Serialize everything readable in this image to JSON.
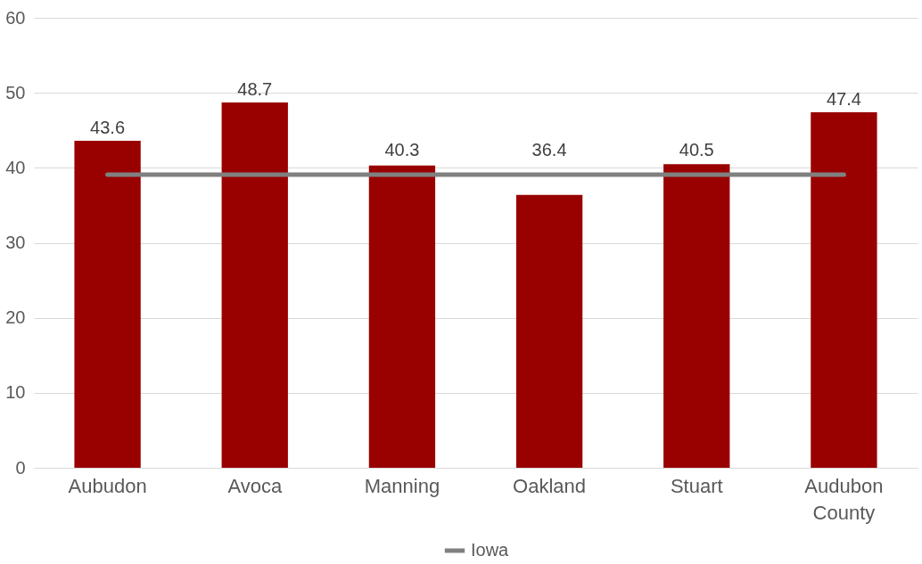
{
  "chart_data": {
    "type": "bar",
    "categories": [
      "Aubudon",
      "Avoca",
      "Manning",
      "Oakland",
      "Stuart",
      "Audubon County"
    ],
    "series": [
      {
        "color": "#990000",
        "values": [
          43.6,
          48.7,
          40.3,
          36.4,
          40.5,
          47.4
        ],
        "value_labels": [
          "43.6",
          "48.7",
          "40.3",
          "36.4",
          "40.5",
          "47.4"
        ]
      },
      {
        "type": "line",
        "name": "Iowa",
        "color": "#808080",
        "values": [
          39.1,
          39.1,
          39.1,
          39.1,
          39.1,
          39.1
        ]
      }
    ],
    "ylim": [
      0,
      60
    ],
    "yticks": [
      0,
      10,
      20,
      30,
      40,
      50,
      60
    ],
    "grid": "y",
    "legend": "bottom",
    "marker": "none"
  }
}
